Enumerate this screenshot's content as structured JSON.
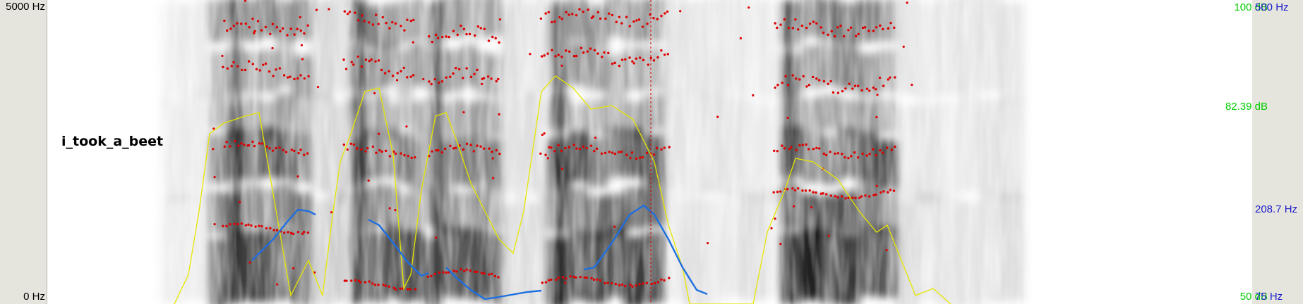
{
  "axes": {
    "freq_top": "5000 Hz",
    "freq_bottom": "0 Hz",
    "intensity_top": "100 dB",
    "intensity_mid": "82.39 dB",
    "intensity_bottom": "50 dB",
    "pitch_top": "500 Hz",
    "pitch_mid": "208.7 Hz",
    "pitch_bottom": "75 Hz"
  },
  "utterance": "i_took_a_beet",
  "colors": {
    "intensity": "#e6e600",
    "pitch": "#1e6fe0",
    "formant": "#e00000",
    "intensity_label": "#00cc00",
    "pitch_label": "#1a1acc",
    "cursor": "#d00000"
  },
  "icons": {
    "spectrogram": "spectrogram-image"
  }
}
